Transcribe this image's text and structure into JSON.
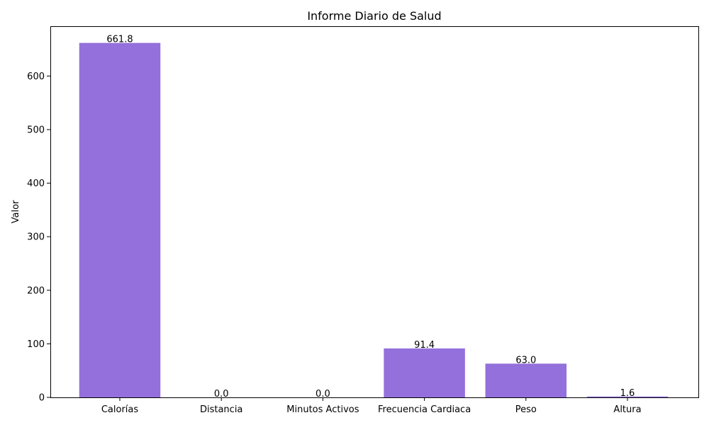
{
  "chart_data": {
    "type": "bar",
    "title": "Informe Diario de Salud",
    "xlabel": "",
    "ylabel": "Valor",
    "categories": [
      "Calorías",
      "Distancia",
      "Minutos Activos",
      "Frecuencia Cardiaca",
      "Peso",
      "Altura"
    ],
    "values": [
      661.8,
      0.0,
      0.0,
      91.4,
      63.0,
      1.6
    ],
    "value_labels": [
      "661.8",
      "0.0",
      "0.0",
      "91.4",
      "63.0",
      "1.6"
    ],
    "ylim": [
      0,
      693
    ],
    "yticks": [
      0,
      100,
      200,
      300,
      400,
      500,
      600
    ],
    "bar_color": "#9370DB",
    "grid": false,
    "legend": "none"
  }
}
